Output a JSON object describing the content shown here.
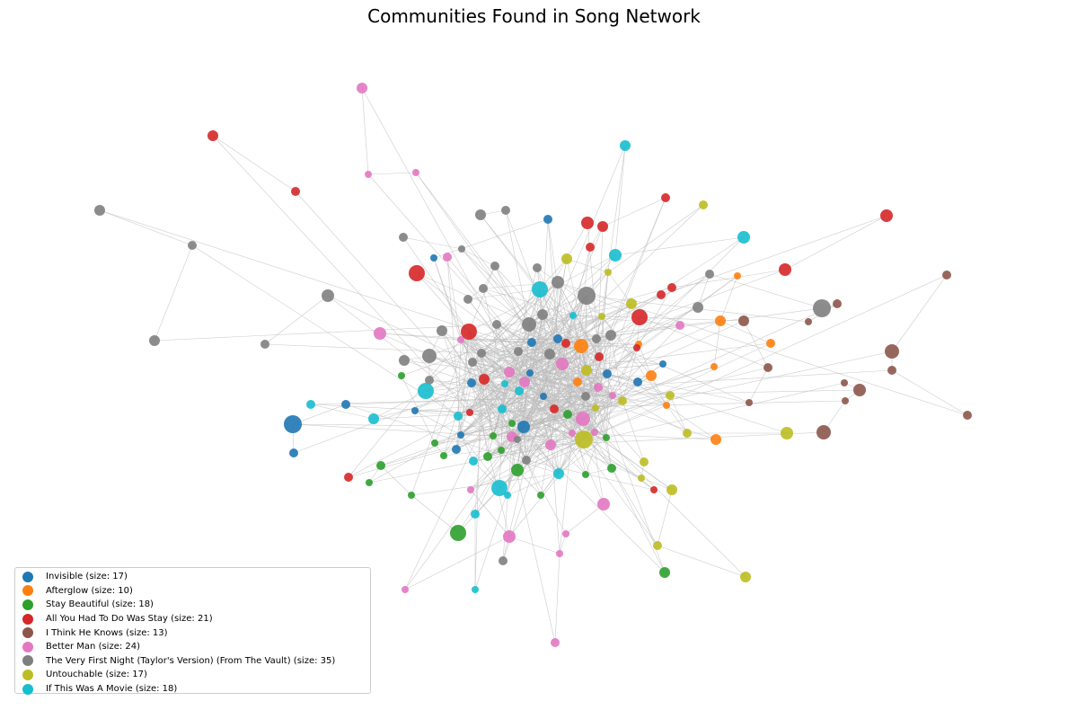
{
  "chart_data": {
    "type": "network",
    "title": "Communities Found in Song Network",
    "communities": [
      {
        "name": "Invisible",
        "size": 17,
        "color": "#1f77b4",
        "label": "Invisible (size: 17)"
      },
      {
        "name": "Afterglow",
        "size": 10,
        "color": "#ff7f0e",
        "label": "Afterglow (size: 10)"
      },
      {
        "name": "Stay Beautiful",
        "size": 18,
        "color": "#2ca02c",
        "label": "Stay Beautiful (size: 18)"
      },
      {
        "name": "All You Had To Do Was Stay",
        "size": 21,
        "color": "#d62728",
        "label": "All You Had To Do Was Stay (size: 21)"
      },
      {
        "name": "I Think He Knows",
        "size": 13,
        "color": "#8c564b",
        "label": "I Think He Knows (size: 13)"
      },
      {
        "name": "Better Man",
        "size": 24,
        "color": "#e377c2",
        "label": "Better Man (size: 24)"
      },
      {
        "name": "The Very First Night (Taylor's Version) (From The Vault)",
        "size": 35,
        "color": "#7f7f7f",
        "label": "The Very First Night (Taylor's Version) (From The Vault) (size: 35)"
      },
      {
        "name": "Untouchable",
        "size": 17,
        "color": "#bcbd22",
        "label": "Untouchable (size: 17)"
      },
      {
        "name": "If This Was A Movie",
        "size": 18,
        "color": "#17becf",
        "label": "If This Was A Movie (size: 18)"
      }
    ],
    "legend_position": "bottom-left",
    "edge_color": "#bbbbbb"
  }
}
